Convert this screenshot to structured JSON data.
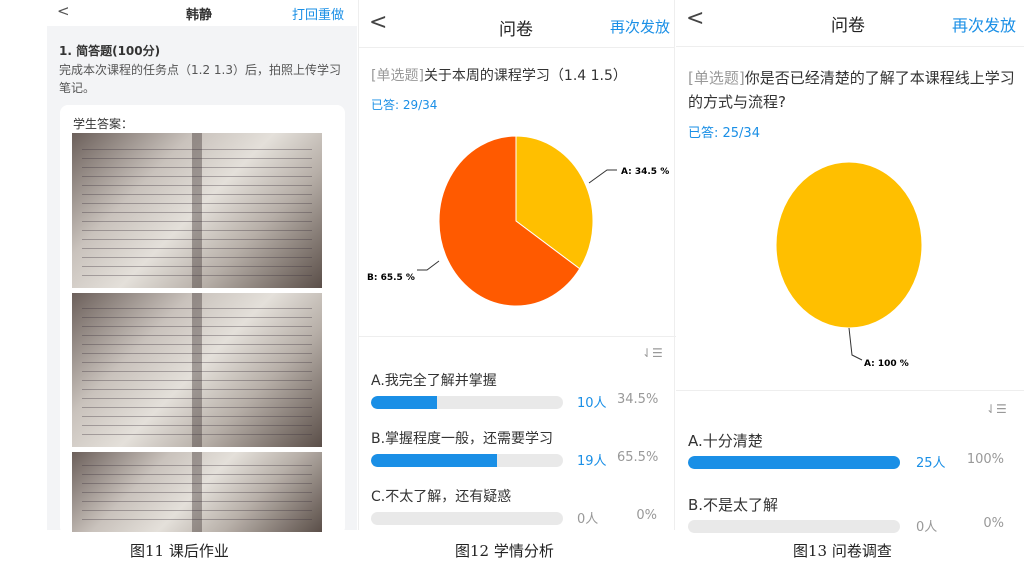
{
  "panel1": {
    "back_icon": "chevron-left-icon",
    "title": "韩静",
    "action": "打回重做",
    "question_title": "1. 简答题(100分)",
    "question_text": "完成本次课程的任务点（1.2 1.3）后，拍照上传学习笔记。",
    "answer_label": "学生答案："
  },
  "panel2": {
    "back_icon": "chevron-left-icon",
    "title": "问卷",
    "action": "再次发放",
    "question_type": "[单选题]",
    "question_text": "关于本周的课程学习（1.4 1.5）",
    "answered": "已答: 29/34",
    "sort_icon": "sort-list-icon",
    "options": [
      {
        "label": "A.我完全了解并掌握",
        "count": "10人",
        "percent": "34.5%",
        "value": 34.5
      },
      {
        "label": "B.掌握程度一般，还需要学习",
        "count": "19人",
        "percent": "65.5%",
        "value": 65.5
      },
      {
        "label": "C.不太了解，还有疑惑",
        "count": "0人",
        "percent": "0%",
        "value": 0
      }
    ]
  },
  "panel3": {
    "back_icon": "chevron-left-icon",
    "title": "问卷",
    "action": "再次发放",
    "question_type": "[单选题]",
    "question_text": "你是否已经清楚的了解了本课程线上学习的方式与流程?",
    "answered": "已答: 25/34",
    "sort_icon": "sort-list-icon",
    "options": [
      {
        "label": "A.十分清楚",
        "count": "25人",
        "percent": "100%",
        "value": 100
      },
      {
        "label": "B.不是太了解",
        "count": "0人",
        "percent": "0%",
        "value": 0
      }
    ]
  },
  "chart_data": [
    {
      "type": "pie",
      "slices": [
        {
          "label": "A: 34.5 %",
          "value": 34.5,
          "color": "#ffbf00"
        },
        {
          "label": "B: 65.5 %",
          "value": 65.5,
          "color": "#ff5a00"
        }
      ]
    },
    {
      "type": "pie",
      "slices": [
        {
          "label": "A: 100 %",
          "value": 100,
          "color": "#ffbf00"
        }
      ]
    }
  ],
  "captions": [
    "图11 课后作业",
    "图12 学情分析",
    "图13 问卷调查"
  ]
}
